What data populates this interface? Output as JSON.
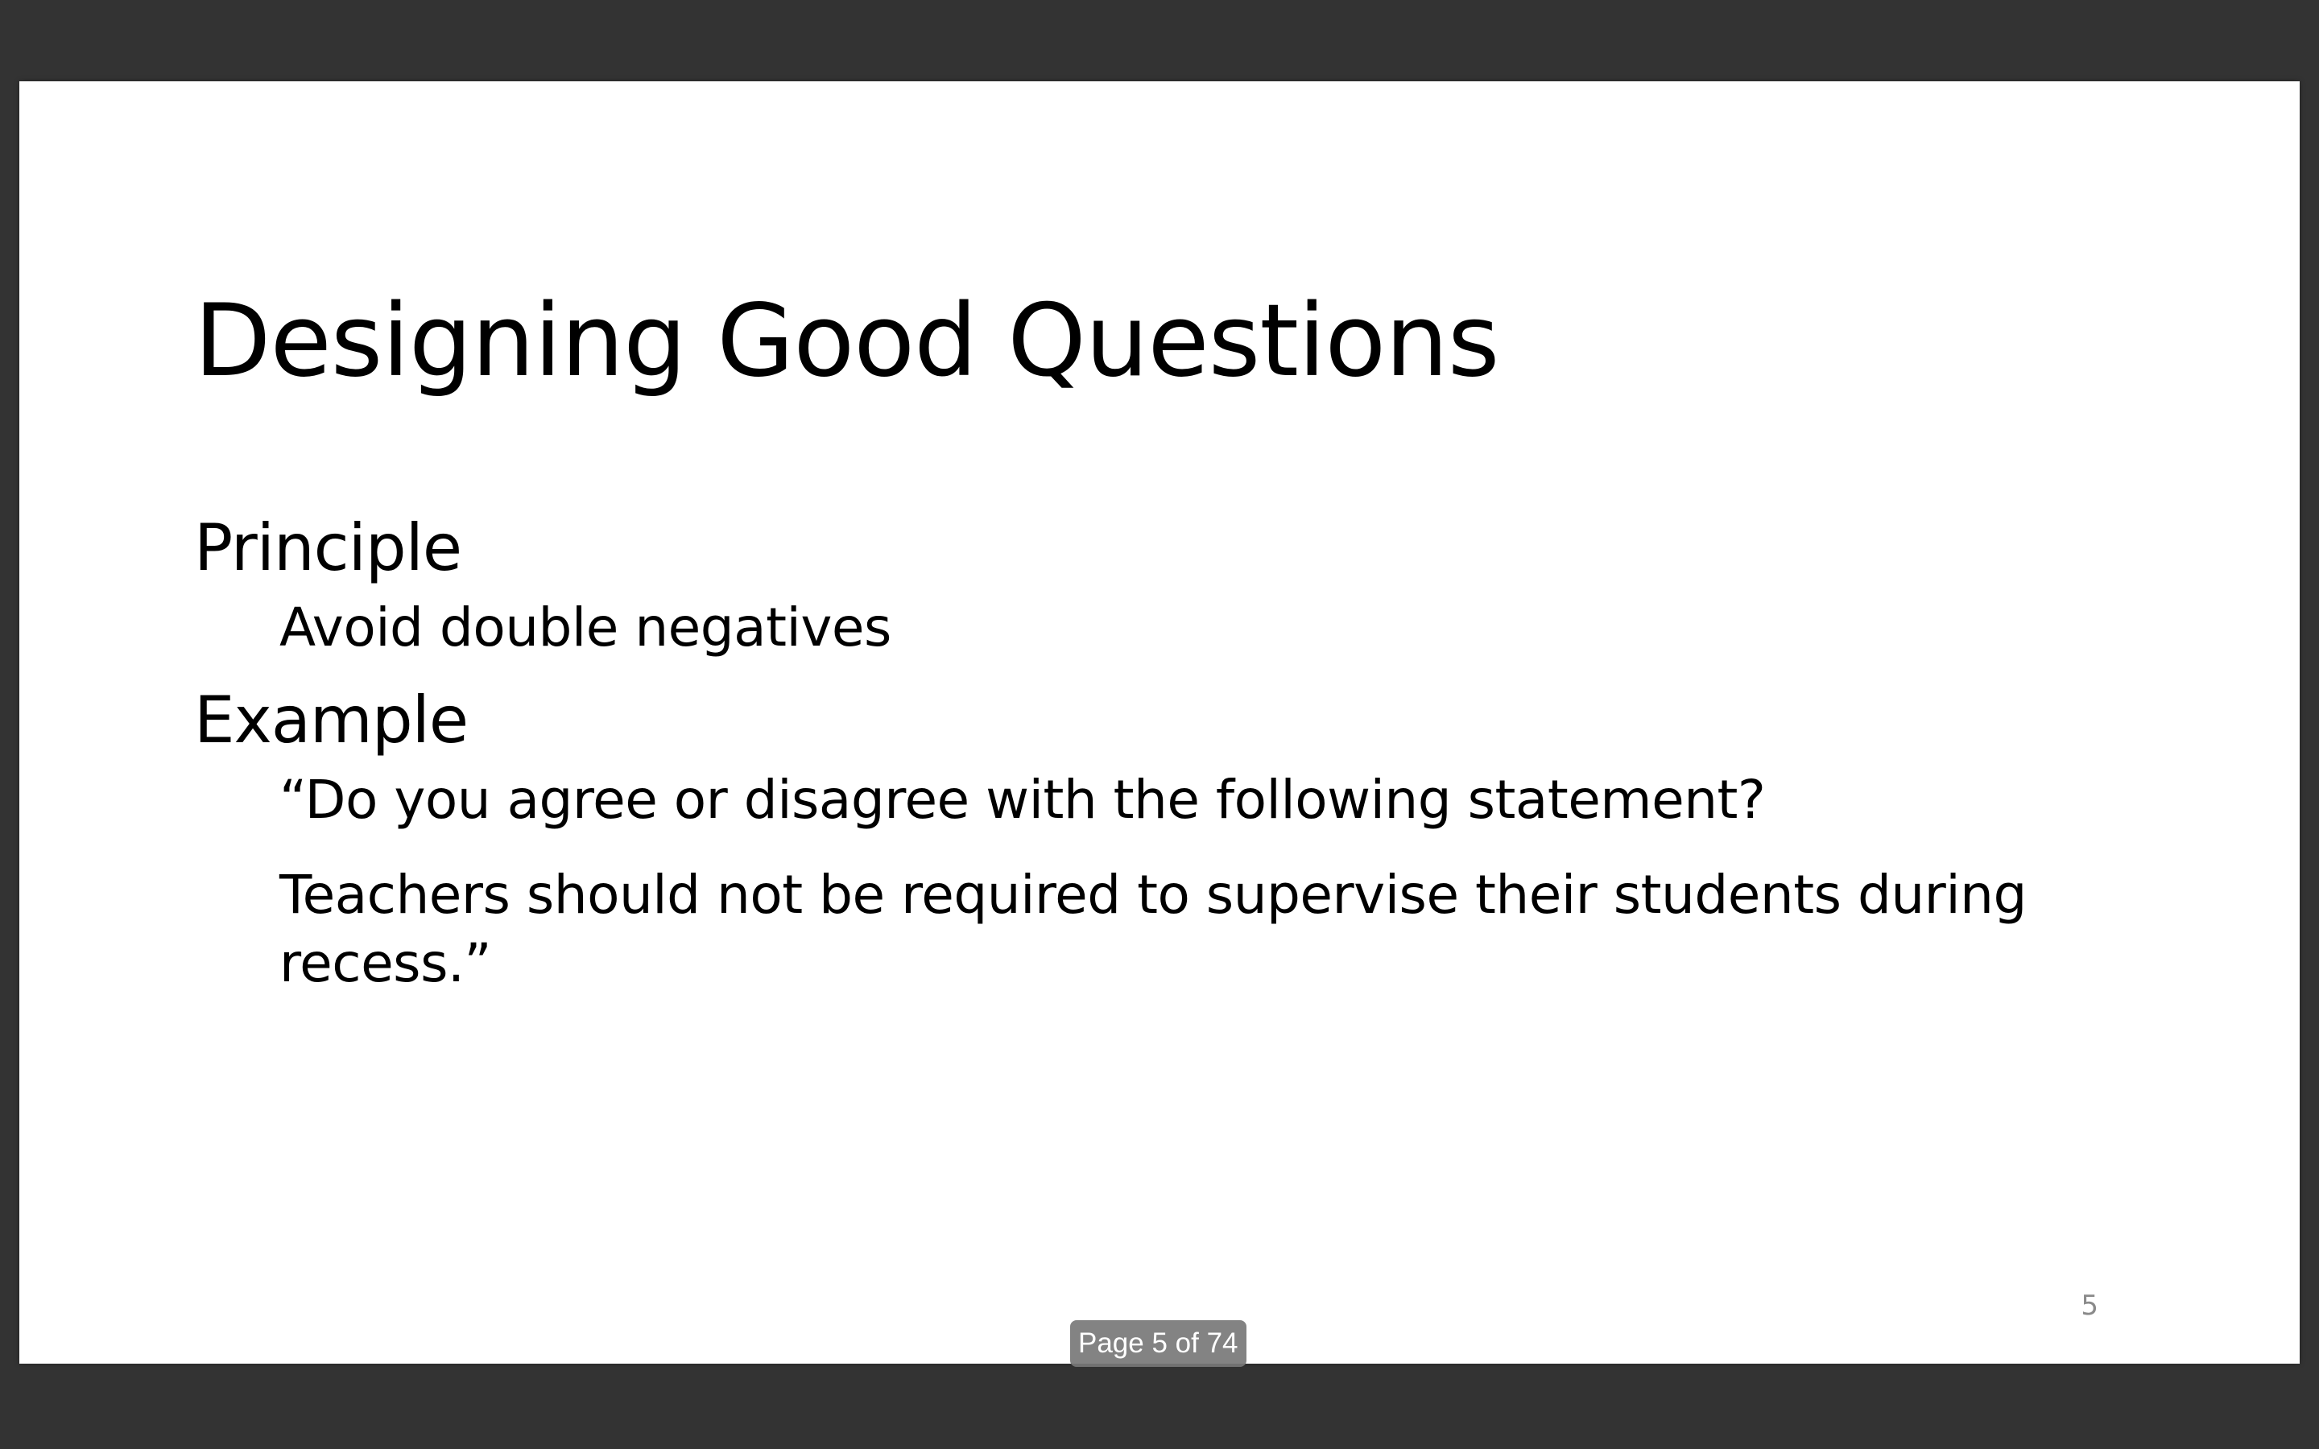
{
  "slide": {
    "title": "Designing Good Questions",
    "sections": {
      "principle_heading": "Principle",
      "principle_text": "Avoid double negatives",
      "example_heading": "Example",
      "example_line_1": "“Do you agree or disagree with the following statement?",
      "example_line_2": "Teachers should not be required to supervise their students during recess.”"
    },
    "slide_number": "5"
  },
  "viewer": {
    "page_indicator": "Page 5 of 74"
  },
  "colors": {
    "background": "#333333",
    "slide": "#ffffff",
    "text": "#000000",
    "page_indicator": "#787878"
  }
}
